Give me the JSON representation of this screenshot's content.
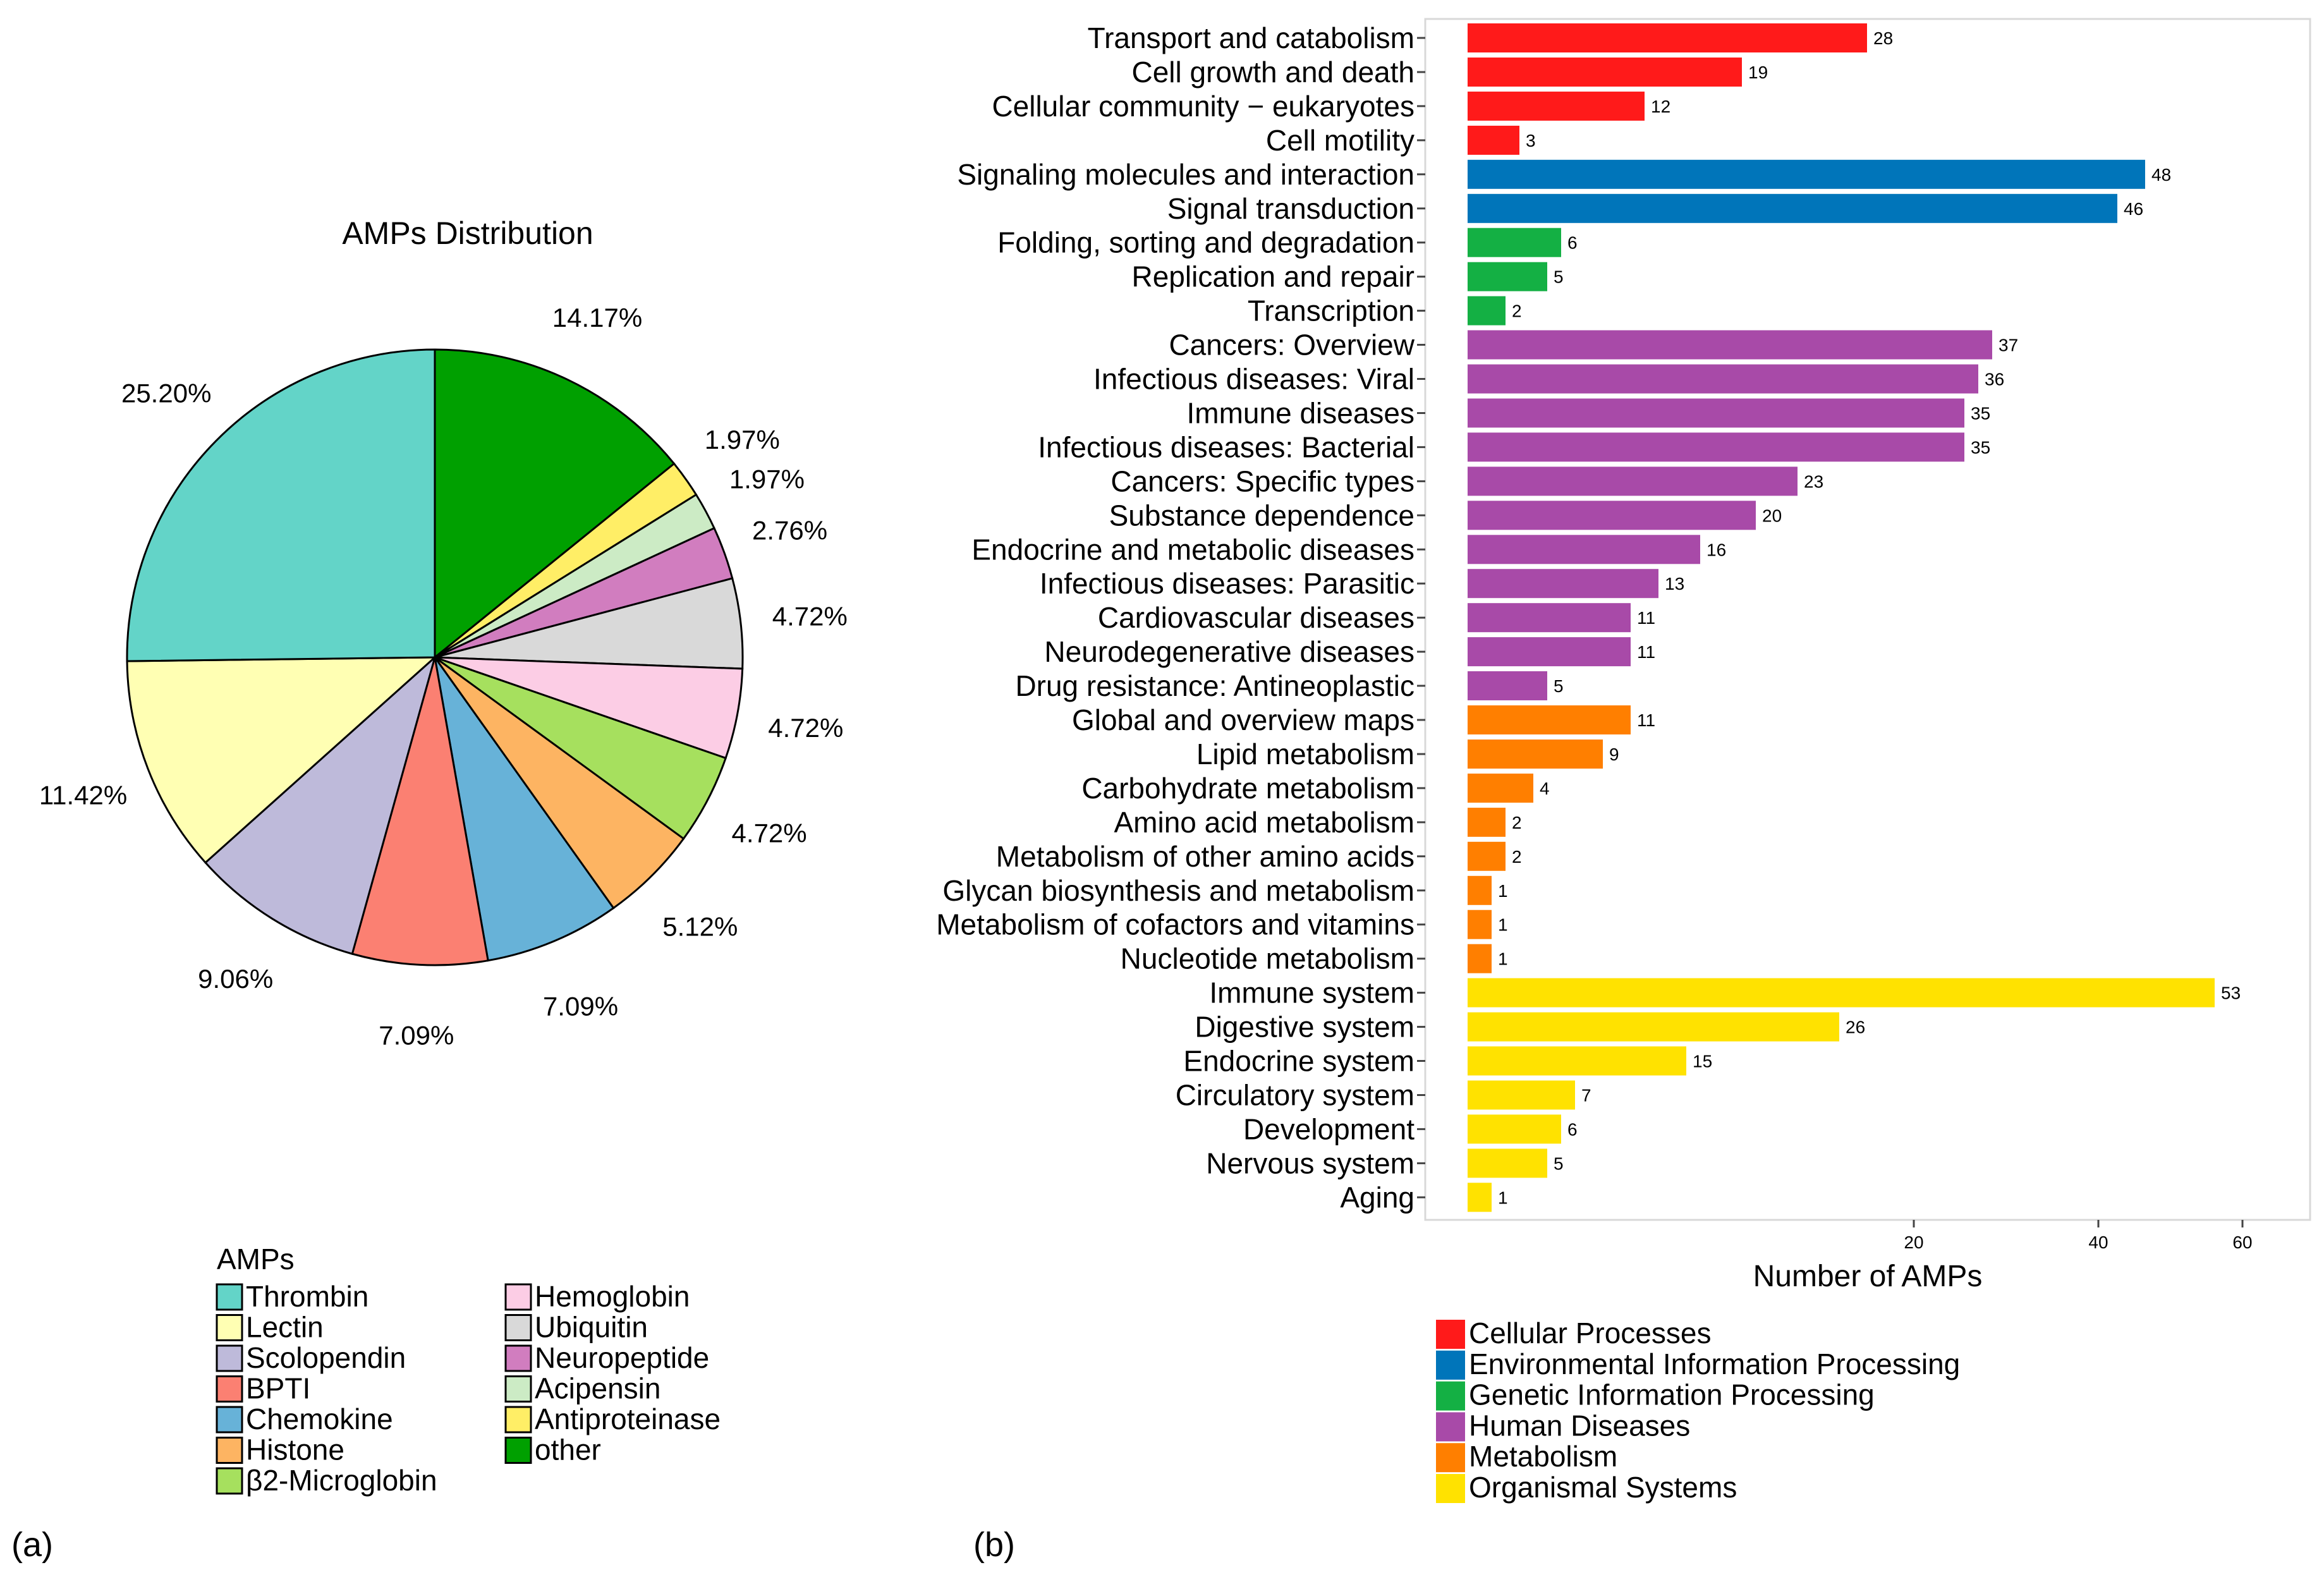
{
  "panel_labels": {
    "a": "(a)",
    "b": "(b)"
  },
  "chart_data": [
    {
      "type": "pie",
      "title": "AMPs Distribution",
      "legend_title": "AMPs",
      "slices": [
        {
          "name": "other",
          "value": 14.17,
          "label": "14.17%",
          "color": "#00A000"
        },
        {
          "name": "Antiproteinase",
          "value": 1.97,
          "label": "1.97%",
          "color": "#FFEE66"
        },
        {
          "name": "Acipensin",
          "value": 1.97,
          "label": "1.97%",
          "color": "#CCEBC5"
        },
        {
          "name": "Neuropeptide",
          "value": 2.76,
          "label": "2.76%",
          "color": "#D17DBF"
        },
        {
          "name": "Ubiquitin",
          "value": 4.72,
          "label": "4.72%",
          "color": "#D9D9D9"
        },
        {
          "name": "Hemoglobin",
          "value": 4.72,
          "label": "4.72%",
          "color": "#FCCDE5"
        },
        {
          "name": "β2-Microglobin",
          "value": 4.72,
          "label": "4.72%",
          "color": "#A6E05E"
        },
        {
          "name": "Histone",
          "value": 5.12,
          "label": "5.12%",
          "color": "#FDB462"
        },
        {
          "name": "Chemokine",
          "value": 7.09,
          "label": "7.09%",
          "color": "#67B2D8"
        },
        {
          "name": "BPTI",
          "value": 7.09,
          "label": "7.09%",
          "color": "#FB8072"
        },
        {
          "name": "Scolopendin",
          "value": 9.06,
          "label": "9.06%",
          "color": "#BEBADA"
        },
        {
          "name": "Lectin",
          "value": 11.42,
          "label": "11.42%",
          "color": "#FFFFB3"
        },
        {
          "name": "Thrombin",
          "value": 25.2,
          "label": "25.20%",
          "color": "#63D4C8"
        }
      ],
      "legend_columns": [
        [
          "Thrombin",
          "Lectin",
          "Scolopendin",
          "BPTI",
          "Chemokine",
          "Histone",
          "β2-Microglobin"
        ],
        [
          "Hemoglobin",
          "Ubiquitin",
          "Neuropeptide",
          "Acipensin",
          "Antiproteinase",
          "other"
        ]
      ]
    },
    {
      "type": "bar",
      "orientation": "horizontal",
      "xlabel": "Number of AMPs",
      "x_ticks": [
        20,
        40,
        60
      ],
      "categories": [
        "Transport and catabolism",
        "Cell growth and death",
        "Cellular community − eukaryotes",
        "Cell motility",
        "Signaling molecules and interaction",
        "Signal transduction",
        "Folding, sorting and degradation",
        "Replication and repair",
        "Transcription",
        "Cancers: Overview",
        "Infectious diseases: Viral",
        "Immune diseases",
        "Infectious diseases: Bacterial",
        "Cancers: Specific types",
        "Substance dependence",
        "Endocrine and metabolic diseases",
        "Infectious diseases: Parasitic",
        "Cardiovascular diseases",
        "Neurodegenerative diseases",
        "Drug resistance: Antineoplastic",
        "Global and overview maps",
        "Lipid metabolism",
        "Carbohydrate metabolism",
        "Amino acid metabolism",
        "Metabolism of other amino acids",
        "Glycan biosynthesis and metabolism",
        "Metabolism of cofactors and vitamins",
        "Nucleotide metabolism",
        "Immune system",
        "Digestive system",
        "Endocrine system",
        "Circulatory system",
        "Development",
        "Nervous system",
        "Aging"
      ],
      "values": [
        28,
        19,
        12,
        3,
        48,
        46,
        6,
        5,
        2,
        37,
        36,
        35,
        35,
        23,
        20,
        16,
        13,
        11,
        11,
        5,
        11,
        9,
        4,
        2,
        2,
        1,
        1,
        1,
        53,
        26,
        15,
        7,
        6,
        5,
        1
      ],
      "groups": [
        0,
        0,
        0,
        0,
        1,
        1,
        2,
        2,
        2,
        3,
        3,
        3,
        3,
        3,
        3,
        3,
        3,
        3,
        3,
        3,
        4,
        4,
        4,
        4,
        4,
        4,
        4,
        4,
        5,
        5,
        5,
        5,
        5,
        5,
        5
      ],
      "legend": [
        {
          "name": "Cellular Processes",
          "color": "#FF1A1A"
        },
        {
          "name": "Environmental Information Processing",
          "color": "#0075BA"
        },
        {
          "name": "Genetic Information Processing",
          "color": "#14B044"
        },
        {
          "name": "Human Diseases",
          "color": "#A84AA8"
        },
        {
          "name": "Metabolism",
          "color": "#FF7F00"
        },
        {
          "name": "Organismal Systems",
          "color": "#FFE200"
        }
      ]
    }
  ]
}
